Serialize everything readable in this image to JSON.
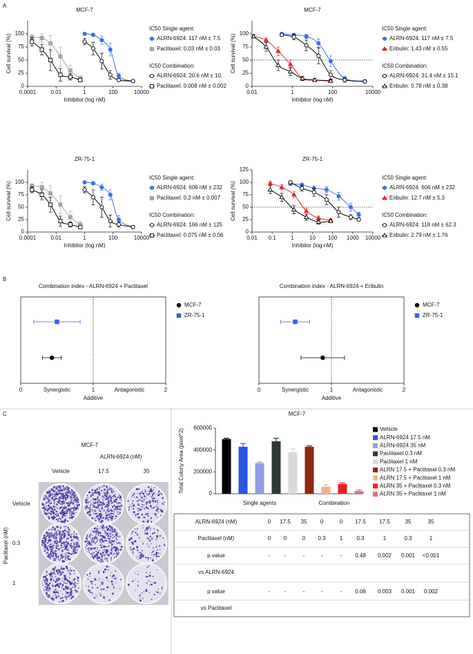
{
  "panel_labels": [
    "A",
    "B",
    "C"
  ],
  "chart_data": [
    {
      "type": "dose_response",
      "title": "MCF-7",
      "xlabel": "Inhibitor (log nM)",
      "ylabel": "Cell survival (%)",
      "log_x": true,
      "xlim": [
        0.0001,
        10000
      ],
      "xticks": [
        0.0001,
        0.01,
        1,
        100,
        10000
      ],
      "ylim": [
        0,
        125
      ],
      "yticks": [
        0,
        25,
        50,
        75,
        100
      ],
      "legend_titles": [
        "IC50 Single agent:",
        "IC50 Combination:"
      ],
      "series": [
        {
          "name": "ALRN-6924: 117 nM ± 7.5",
          "color": "#3f6fe8",
          "marker": "circle",
          "filled": true,
          "x": [
            1,
            4,
            16,
            64,
            250,
            2500
          ],
          "values": [
            100,
            98,
            88,
            70,
            20,
            10
          ],
          "errors": [
            0,
            3,
            8,
            12,
            5,
            2
          ]
        },
        {
          "name": "Paclitaxel: 0.03 nM ± 0.03",
          "color": "#a6a6a6",
          "marker": "square",
          "filled": true,
          "x": [
            0.0002,
            0.001,
            0.004,
            0.02,
            0.1,
            0.5
          ],
          "values": [
            93,
            92,
            82,
            57,
            30,
            15
          ],
          "errors": [
            5,
            8,
            15,
            18,
            10,
            5
          ]
        },
        {
          "name": "ALRN-6924: 20.6 nM ± 10",
          "color": "#000000",
          "marker": "circle",
          "filled": false,
          "x": [
            1,
            4,
            16,
            64,
            250,
            2500
          ],
          "values": [
            85,
            72,
            48,
            22,
            12,
            10
          ],
          "errors": [
            6,
            12,
            15,
            8,
            3,
            2
          ]
        },
        {
          "name": "Paclitaxel: 0.008 nM ± 0.002",
          "color": "#000000",
          "marker": "square",
          "filled": false,
          "x": [
            0.0002,
            0.001,
            0.004,
            0.02,
            0.1,
            0.5
          ],
          "values": [
            85,
            70,
            50,
            22,
            18,
            12
          ],
          "errors": [
            8,
            10,
            20,
            12,
            6,
            3
          ]
        }
      ]
    },
    {
      "type": "dose_response",
      "title": "MCF-7",
      "xlabel": "Inhibitor (log nM)",
      "ylabel": "Cell survival (%)",
      "log_x": true,
      "xlim": [
        0.01,
        10000
      ],
      "xticks": [
        0.01,
        1,
        100,
        10000
      ],
      "ylim": [
        0,
        125
      ],
      "yticks": [
        0,
        25,
        50,
        75,
        100
      ],
      "hline": 50,
      "legend_titles": [
        "IC50 Single agent:",
        "IC50 Combination:"
      ],
      "series": [
        {
          "name": "ALRN-6924: 117 nM ± 7.5",
          "color": "#3f6fe8",
          "marker": "circle",
          "filled": true,
          "x": [
            0.3,
            1.2,
            5,
            20,
            80,
            400,
            4000
          ],
          "values": [
            100,
            98,
            95,
            82,
            48,
            15,
            10
          ],
          "errors": [
            2,
            3,
            4,
            8,
            10,
            4,
            2
          ]
        },
        {
          "name": "Eribulin: 1.43 nM ± 0.55",
          "color": "#e0242a",
          "marker": "triangle",
          "filled": true,
          "x": [
            0.012,
            0.05,
            0.2,
            0.8,
            3.2,
            12.8,
            80
          ],
          "values": [
            95,
            88,
            67,
            42,
            15,
            12,
            11
          ],
          "errors": [
            3,
            4,
            8,
            8,
            4,
            3,
            2
          ]
        },
        {
          "name": "ALRN-6924: 31.4 nM ± 15.1",
          "color": "#000000",
          "marker": "circle",
          "filled": false,
          "x": [
            0.3,
            1.2,
            5,
            20,
            80,
            400,
            4000
          ],
          "values": [
            98,
            94,
            78,
            58,
            22,
            12,
            9
          ],
          "errors": [
            3,
            5,
            10,
            15,
            8,
            4,
            2
          ]
        },
        {
          "name": "Eribulin: 0.78 nM ± 0.38",
          "color": "#000000",
          "marker": "triangle",
          "filled": false,
          "x": [
            0.012,
            0.05,
            0.2,
            0.8,
            3.2,
            12.8,
            80
          ],
          "values": [
            95,
            75,
            40,
            28,
            15,
            12,
            10
          ],
          "errors": [
            3,
            8,
            10,
            8,
            4,
            3,
            2
          ]
        }
      ]
    },
    {
      "type": "dose_response",
      "title": "ZR-75-1",
      "xlabel": "Inhibitor (log nM)",
      "ylabel": "Cell survival (%)",
      "log_x": true,
      "xlim": [
        0.0001,
        10000
      ],
      "xticks": [
        0.0001,
        0.01,
        1,
        100,
        10000
      ],
      "ylim": [
        0,
        125
      ],
      "yticks": [
        0,
        25,
        50,
        75,
        100
      ],
      "legend_titles": [
        "IC50 Single agent:",
        "IC50 Combination:"
      ],
      "series": [
        {
          "name": "ALRN-6924: 606 nM ± 232",
          "color": "#3f6fe8",
          "marker": "circle",
          "filled": true,
          "x": [
            1,
            4,
            16,
            64,
            250,
            2500
          ],
          "values": [
            100,
            98,
            90,
            75,
            25,
            10
          ],
          "errors": [
            2,
            3,
            6,
            10,
            8,
            3
          ]
        },
        {
          "name": "Paclitaxel: 0.2 nM ± 0.007",
          "color": "#a6a6a6",
          "marker": "square",
          "filled": true,
          "x": [
            0.0002,
            0.001,
            0.004,
            0.02,
            0.1,
            0.5
          ],
          "values": [
            93,
            90,
            78,
            55,
            30,
            15
          ],
          "errors": [
            4,
            10,
            15,
            18,
            12,
            6
          ]
        },
        {
          "name": "ALRN-6924: 166 nM ± 125",
          "color": "#000000",
          "marker": "circle",
          "filled": false,
          "x": [
            1,
            4,
            16,
            64,
            250,
            2500
          ],
          "values": [
            85,
            70,
            50,
            22,
            15,
            10
          ],
          "errors": [
            6,
            15,
            20,
            12,
            5,
            3
          ]
        },
        {
          "name": "Paclitaxel: 0.075 nM ± 0.06",
          "color": "#000000",
          "marker": "square",
          "filled": false,
          "x": [
            0.0002,
            0.001,
            0.004,
            0.02,
            0.1,
            0.5
          ],
          "values": [
            85,
            75,
            55,
            22,
            15,
            10
          ],
          "errors": [
            6,
            10,
            15,
            10,
            5,
            3
          ]
        }
      ]
    },
    {
      "type": "dose_response",
      "title": "ZR-75-1",
      "xlabel": "Inhibitor (log nM)",
      "ylabel": "Cell survival (%)",
      "log_x": true,
      "xlim": [
        0.01,
        10000
      ],
      "xticks": [
        0.01,
        0.1,
        1,
        10,
        100,
        1000,
        10000
      ],
      "ylim": [
        0,
        125
      ],
      "yticks": [
        0,
        25,
        50,
        75,
        100,
        125
      ],
      "hline": 50,
      "legend_titles": [
        "IC50 Single agent:",
        "IC50 Combination:"
      ],
      "series": [
        {
          "name": "ALRN-6924: 606 nM ± 232",
          "color": "#3f6fe8",
          "marker": "circle",
          "filled": true,
          "x": [
            0.8,
            3,
            12,
            50,
            200,
            800,
            2000
          ],
          "values": [
            97,
            95,
            88,
            85,
            72,
            50,
            35
          ],
          "errors": [
            3,
            3,
            5,
            6,
            8,
            8,
            5
          ]
        },
        {
          "name": "Eribulin: 12.7 nM ± 5.3",
          "color": "#e0242a",
          "marker": "triangle",
          "filled": true,
          "x": [
            0.08,
            0.3,
            1.2,
            5,
            20,
            80
          ],
          "values": [
            98,
            90,
            75,
            42,
            28,
            24
          ],
          "errors": [
            4,
            5,
            6,
            6,
            4,
            3
          ]
        },
        {
          "name": "ALRN-6924: 118 nM ± 62.3",
          "color": "#000000",
          "marker": "circle",
          "filled": false,
          "x": [
            0.8,
            3,
            12,
            50,
            200,
            800,
            2000
          ],
          "values": [
            100,
            88,
            80,
            65,
            40,
            30,
            25
          ],
          "errors": [
            3,
            6,
            8,
            10,
            10,
            5,
            3
          ]
        },
        {
          "name": "Eribulin: 2.79 nM ± 1.76",
          "color": "#000000",
          "marker": "triangle",
          "filled": false,
          "x": [
            0.08,
            0.3,
            1.2,
            5,
            20,
            80
          ],
          "values": [
            85,
            70,
            45,
            30,
            20,
            22
          ],
          "errors": [
            8,
            8,
            8,
            6,
            4,
            3
          ]
        }
      ]
    },
    {
      "type": "forest",
      "title": "Combination index - ALRN-6924 + Paclitaxel",
      "xlim": [
        0,
        2
      ],
      "xticks": [
        0,
        1,
        2
      ],
      "vline": 1,
      "left_label": "Synergistic",
      "center_label": "Additive",
      "right_label": "Antagonistic",
      "series": [
        {
          "name": "MCF-7",
          "color": "#000000",
          "marker": "circle",
          "value": 0.43,
          "error": 0.13
        },
        {
          "name": "ZR-75-1",
          "color": "#3b5fe0",
          "marker": "square",
          "value": 0.5,
          "error": 0.32
        }
      ]
    },
    {
      "type": "forest",
      "title": "Combination index - ALRN-6924 + Eribulin",
      "xlim": [
        0,
        2
      ],
      "xticks": [
        0,
        1,
        2
      ],
      "vline": 1,
      "left_label": "Synergistic",
      "center_label": "Additive",
      "right_label": "Antagonistic",
      "series": [
        {
          "name": "MCF-7",
          "color": "#000000",
          "marker": "circle",
          "value": 0.88,
          "error": 0.3
        },
        {
          "name": "ZR-75-1",
          "color": "#3b5fe0",
          "marker": "square",
          "value": 0.5,
          "error": 0.2
        }
      ]
    },
    {
      "type": "bar",
      "title": "MCF-7",
      "ylabel": "Total Colony Area (pixel^2)",
      "ylim": [
        0,
        600000
      ],
      "yticks": [
        0,
        200000,
        400000,
        600000
      ],
      "categories": [
        "Vehicle",
        "ALRN-6924 17.5 nM",
        "ALRN-6924 35 nM",
        "Paclitaxel 0.3 nM",
        "Paclitaxel 1 nM",
        "ALRN 17.5 + Paclitaxel 0.3 nM",
        "ALRN 17.5 + Paclitaxel 1 nM",
        "ALRN 35 + Paclitaxel 0.3 nM",
        "ALRN 35 + Paclitaxel 1 nM"
      ],
      "values": [
        500000,
        430000,
        280000,
        480000,
        380000,
        430000,
        65000,
        90000,
        25000
      ],
      "errors": [
        8000,
        30000,
        10000,
        28000,
        30000,
        8000,
        18000,
        10000,
        10000
      ],
      "colors": [
        "#000000",
        "#2b55e6",
        "#8f9de8",
        "#2f3a36",
        "#d9d9d9",
        "#8b2a0e",
        "#f2b48a",
        "#e82020",
        "#e86b8a"
      ],
      "group_labels": [
        "Single agents",
        "Combination"
      ],
      "group_sizes": [
        5,
        4
      ]
    }
  ],
  "colony_image": {
    "title": "MCF-7",
    "column_header": "ALRN-6924 (nM)",
    "columns": [
      "Vehicle",
      "17.5",
      "35"
    ],
    "row_header": "Paclitaxel (nM)",
    "rows": [
      "Vehicle",
      "0.3",
      "1"
    ]
  },
  "table": {
    "rows": [
      [
        "ALRN-6924 (nM)",
        "0",
        "17.5",
        "35",
        "0",
        "0",
        "17.5",
        "17.5",
        "35",
        "35"
      ],
      [
        "Paclitaxel (nM)",
        "0",
        "0",
        "0",
        "0.3",
        "1",
        "0.3",
        "1",
        "0.3",
        "1"
      ],
      [
        "p value",
        "-",
        "-",
        "-",
        "-",
        "-",
        "0.48",
        "0.002",
        "0.001",
        "<0.001"
      ],
      [
        "vs ALRN-6924"
      ],
      [
        "p value",
        "-",
        "-",
        "-",
        "-",
        "-",
        "0.06",
        "0.003",
        "0.001",
        "0.002"
      ],
      [
        "vs Paclitaxel"
      ]
    ]
  }
}
